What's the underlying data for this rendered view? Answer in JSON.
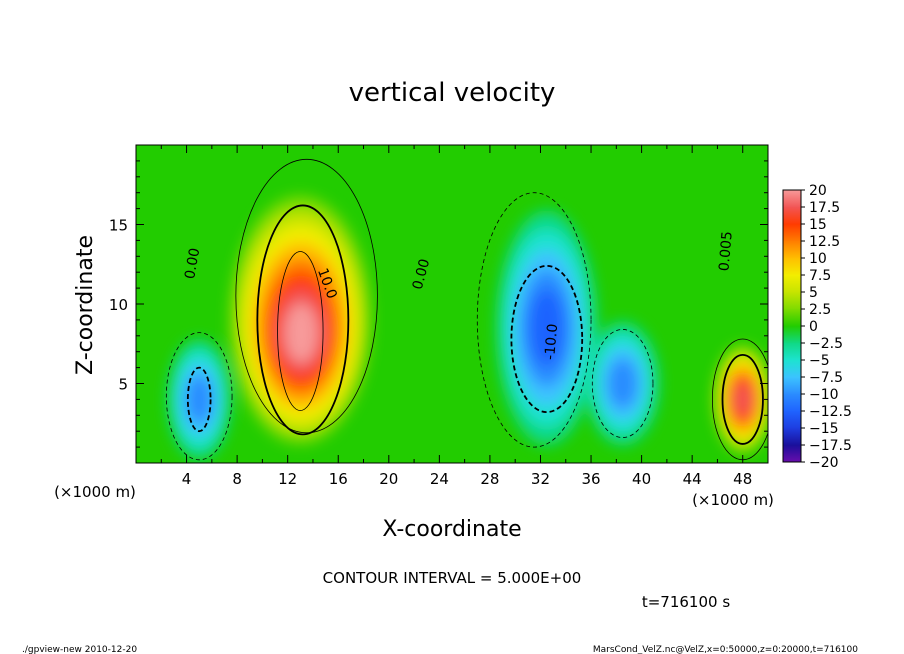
{
  "chart_data": {
    "type": "heatmap",
    "title": "vertical velocity",
    "xlabel": "X-coordinate",
    "ylabel": "Z-coordinate",
    "x_unit": "(×1000 m)",
    "y_unit": "(×1000 m)",
    "xlim": [
      0,
      50
    ],
    "ylim": [
      0,
      20
    ],
    "x_ticks": [
      4,
      8,
      12,
      16,
      20,
      24,
      28,
      32,
      36,
      40,
      44,
      48
    ],
    "y_ticks": [
      5,
      10,
      15
    ],
    "colorbar": {
      "min": -20,
      "max": 20,
      "labels": [
        "20",
        "17.5",
        "15",
        "12.5",
        "10",
        "7.5",
        "5",
        "2.5",
        "0",
        "−2.5",
        "−5",
        "−7.5",
        "−10",
        "−12.5",
        "−15",
        "−17.5",
        "−20"
      ]
    },
    "contour_labels": [
      {
        "text": "0.00",
        "x": 4.8,
        "z": 12.5,
        "angle": -80
      },
      {
        "text": "10.0",
        "x": 14.8,
        "z": 11.2,
        "angle": 70
      },
      {
        "text": "0.00",
        "x": 22.9,
        "z": 11.8,
        "angle": -75
      },
      {
        "text": "-10.0",
        "x": 33.2,
        "z": 7.6,
        "angle": -85
      },
      {
        "text": "0.005",
        "x": 47.0,
        "z": 13.3,
        "angle": -85
      }
    ],
    "features": [
      {
        "kind": "updraft",
        "x": 13,
        "z": 8.5,
        "peak": 20
      },
      {
        "kind": "downdraft",
        "x": 5,
        "z": 4,
        "peak": -9
      },
      {
        "kind": "downdraft",
        "x": 32.5,
        "z": 8.5,
        "peak": -13
      },
      {
        "kind": "downdraft",
        "x": 38.5,
        "z": 5,
        "peak": -9
      },
      {
        "kind": "updraft",
        "x": 48,
        "z": 4,
        "peak": 17
      }
    ]
  },
  "contour_interval_text": "CONTOUR INTERVAL = 5.000E+00",
  "time_text": "t=716100 s",
  "footer_left": "./gpview-new  2010-12-20",
  "footer_right": "MarsCond_VelZ.nc@VelZ,x=0:50000,z=0:20000,t=716100"
}
